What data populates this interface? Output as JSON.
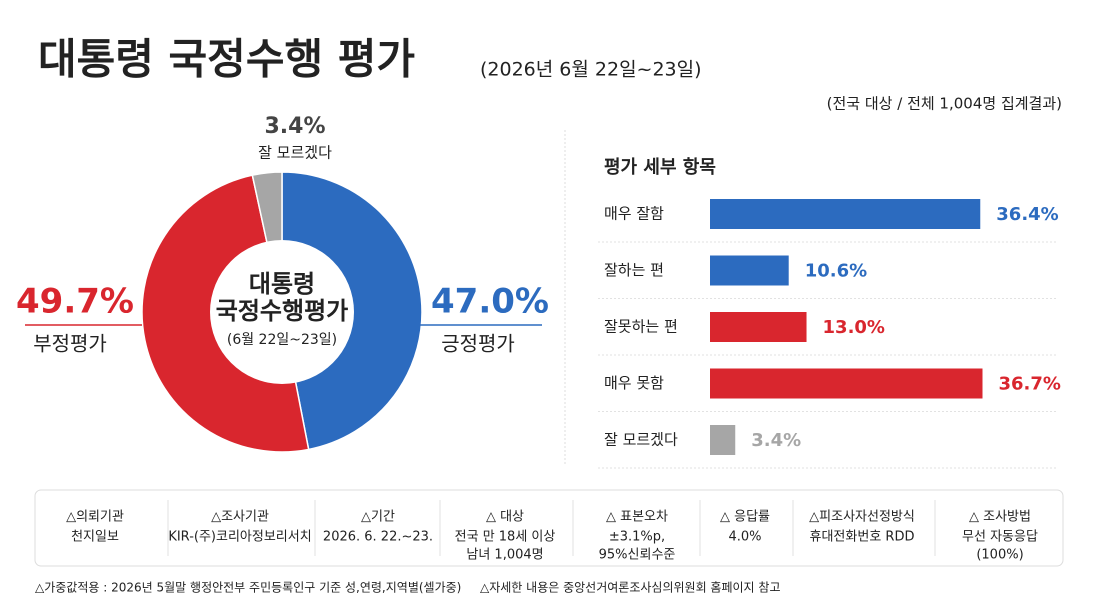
{
  "header": {
    "title": "대통령 국정수행 평가",
    "subtitle": "(2026년 6월 22일~23일)",
    "note": "(전국 대상 / 전체 1,004명 집계결과)"
  },
  "chart_data": [
    {
      "type": "pie",
      "center_label": [
        "대통령",
        "국정수행평가",
        "(6월 22일~23일)"
      ],
      "categories": [
        "긍정평가",
        "부정평가",
        "잘 모르겠다"
      ],
      "values": [
        47.0,
        49.7,
        3.4
      ],
      "value_labels": [
        "47.0%",
        "49.7%",
        "3.4%"
      ],
      "colors": [
        "#2c6bbf",
        "#d9262e",
        "#a6a6a6"
      ]
    },
    {
      "type": "bar",
      "title": "평가 세부 항목",
      "categories": [
        "매우 잘함",
        "잘하는 편",
        "잘못하는 편",
        "매우 못함",
        "잘 모르겠다"
      ],
      "values": [
        36.4,
        10.6,
        13.0,
        36.7,
        3.4
      ],
      "value_labels": [
        "36.4%",
        "10.6%",
        "13.0%",
        "36.7%",
        "3.4%"
      ],
      "colors": [
        "#2c6bbf",
        "#2c6bbf",
        "#d9262e",
        "#d9262e",
        "#a6a6a6"
      ],
      "xlim": [
        0,
        40
      ]
    }
  ],
  "info_table": [
    {
      "header": "△의뢰기관",
      "lines": [
        "천지일보"
      ]
    },
    {
      "header": "△조사기관",
      "lines": [
        "KIR-(주)코리아정보리서치"
      ]
    },
    {
      "header": "△기간",
      "lines": [
        "2026. 6. 22.~23."
      ]
    },
    {
      "header": "△ 대상",
      "lines": [
        "전국 만 18세 이상",
        "남녀 1,004명"
      ]
    },
    {
      "header": "△ 표본오차",
      "lines": [
        "±3.1%p,",
        "95%신뢰수준"
      ]
    },
    {
      "header": "△ 응답률",
      "lines": [
        "4.0%"
      ]
    },
    {
      "header": "△피조사자선정방식",
      "lines": [
        "휴대전화번호 RDD"
      ]
    },
    {
      "header": "△ 조사방법",
      "lines": [
        "무선 자동응답",
        "(100%)"
      ]
    }
  ],
  "footnotes": [
    "△가중값적용 : 2026년 5월말 행정안전부 주민등록인구 기준 성,연령,지역별(셀가중)",
    "△자세한 내용은 중앙선거여론조사심의위원회 홈페이지 참고"
  ]
}
